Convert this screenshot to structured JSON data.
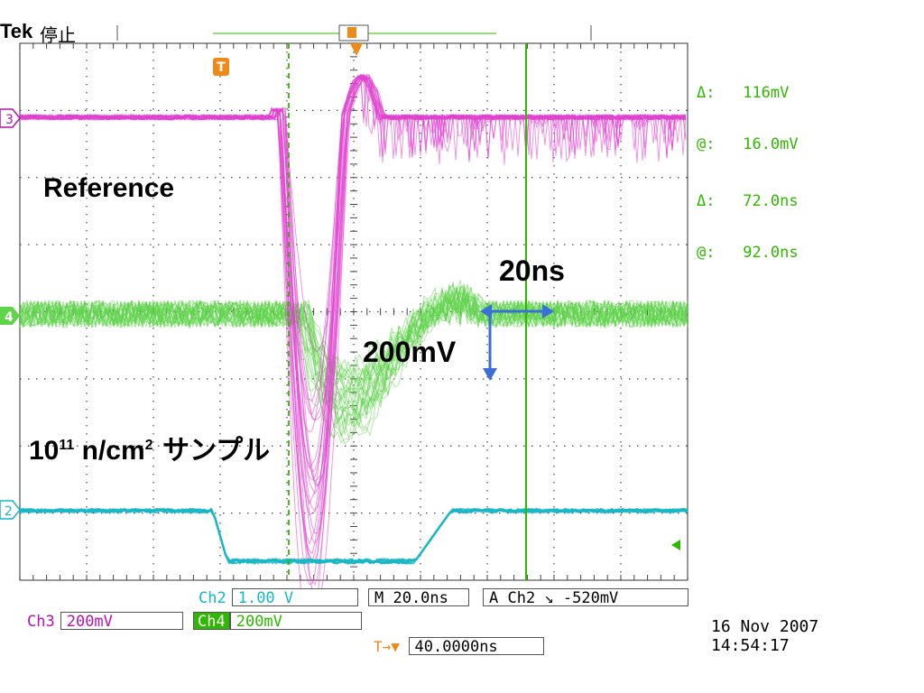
{
  "header": {
    "brand": "Tek",
    "status": "停止"
  },
  "cursor_readout": {
    "delta_v_label": "Δ:",
    "delta_v": "116mV",
    "at_v_label": "@:",
    "at_v": "16.0mV",
    "delta_t_label": "Δ:",
    "delta_t": "72.0ns",
    "at_t_label": "@:",
    "at_t": "92.0ns"
  },
  "channel_markers": {
    "ch3": "3",
    "ch4": "4",
    "ch2": "2",
    "trigger": "T"
  },
  "annotations": {
    "reference": "Reference",
    "time_scale": "20ns",
    "volt_scale": "200mV",
    "sample_base": "10",
    "sample_exp": "11",
    "sample_mid": " n/cm",
    "sample_exp2": "2",
    "sample_tail": " サンプル"
  },
  "settings": {
    "ch2_label": "Ch2",
    "ch2_scale": "1.00 V",
    "ch3_label": "Ch3",
    "ch3_scale": "200mV",
    "ch4_label": "Ch4",
    "ch4_scale": "200mV",
    "timebase": "M 20.0ns",
    "trigger": "A  Ch2 ↘ -520mV",
    "trigger_pos_icon": "T→▼",
    "trigger_pos": "40.0000ns"
  },
  "timestamp": {
    "date": "16 Nov 2007",
    "time": "14:54:17"
  },
  "colors": {
    "ch2": "#16b7c6",
    "ch3": "#e040d0",
    "ch4": "#5fd34a",
    "cursor": "#2fb800",
    "arrow": "#3a6fd8"
  }
}
